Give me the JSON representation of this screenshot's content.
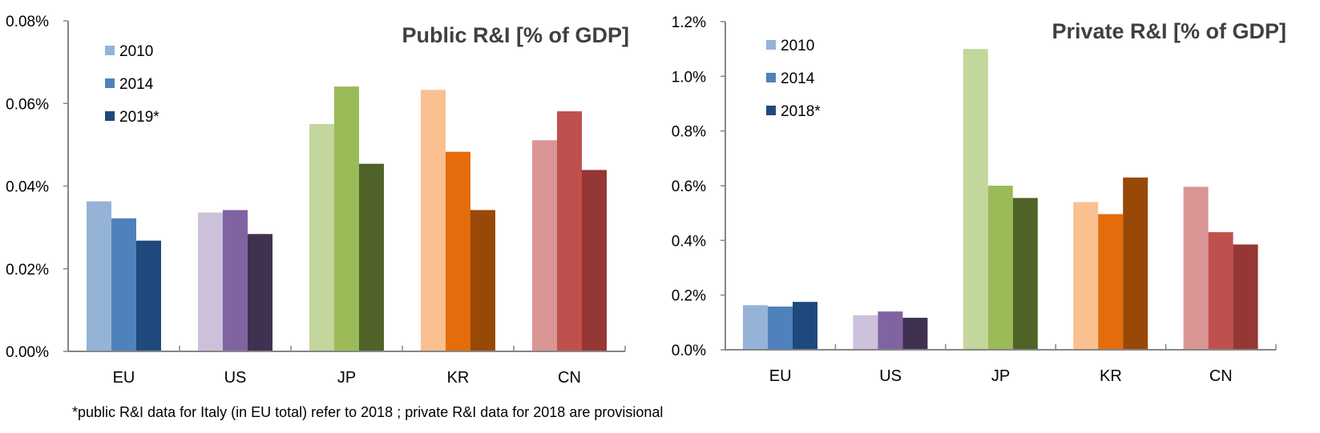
{
  "chart_data": [
    {
      "type": "bar",
      "title": "Public R&I [% of GDP]",
      "xlabel": "",
      "ylabel": "",
      "categories": [
        "EU",
        "US",
        "JP",
        "KR",
        "CN"
      ],
      "ylim": [
        0,
        0.08
      ],
      "yticks": [
        0.0,
        0.02,
        0.04,
        0.06,
        0.08
      ],
      "ytick_labels": [
        "0.00%",
        "0.02%",
        "0.04%",
        "0.06%",
        "0.08%"
      ],
      "unit": "% of GDP",
      "grid": false,
      "legend_position": "top-left",
      "legend": [
        "2010",
        "2014",
        "2019*"
      ],
      "legend_colors": [
        "#95B3D7",
        "#4F81BD",
        "#1F497D"
      ],
      "series": [
        {
          "name": "2010",
          "values": [
            0.0363,
            0.0336,
            0.055,
            0.0633,
            0.0511
          ]
        },
        {
          "name": "2014",
          "values": [
            0.0322,
            0.0342,
            0.0641,
            0.0483,
            0.0581
          ]
        },
        {
          "name": "2019*",
          "values": [
            0.0268,
            0.0284,
            0.0454,
            0.0342,
            0.0439
          ]
        }
      ],
      "category_colors": {
        "EU": [
          "#95B3D7",
          "#4F81BD",
          "#1F497D"
        ],
        "US": [
          "#CCC1DA",
          "#8064A2",
          "#403151"
        ],
        "JP": [
          "#C3D69B",
          "#9BBB59",
          "#4F6228"
        ],
        "KR": [
          "#FAC090",
          "#E46C0A",
          "#984807"
        ],
        "CN": [
          "#D99694",
          "#C0504D",
          "#953735"
        ]
      }
    },
    {
      "type": "bar",
      "title": "Private R&I [% of GDP]",
      "xlabel": "",
      "ylabel": "",
      "categories": [
        "EU",
        "US",
        "JP",
        "KR",
        "CN"
      ],
      "ylim": [
        0,
        1.2
      ],
      "yticks": [
        0.0,
        0.2,
        0.4,
        0.6,
        0.8,
        1.0,
        1.2
      ],
      "ytick_labels": [
        "0.0%",
        "0.2%",
        "0.4%",
        "0.6%",
        "0.8%",
        "1.0%",
        "1.2%"
      ],
      "unit": "% of GDP",
      "grid": false,
      "legend_position": "top-left",
      "legend": [
        "2010",
        "2014",
        "2018*"
      ],
      "legend_colors": [
        "#95B3D7",
        "#4F81BD",
        "#1F497D"
      ],
      "series": [
        {
          "name": "2010",
          "values": [
            0.163,
            0.126,
            1.1,
            0.54,
            0.596
          ]
        },
        {
          "name": "2014",
          "values": [
            0.158,
            0.14,
            0.6,
            0.496,
            0.43
          ]
        },
        {
          "name": "2018*",
          "values": [
            0.175,
            0.117,
            0.555,
            0.63,
            0.385
          ]
        }
      ],
      "category_colors": {
        "EU": [
          "#95B3D7",
          "#4F81BD",
          "#1F497D"
        ],
        "US": [
          "#CCC1DA",
          "#8064A2",
          "#403151"
        ],
        "JP": [
          "#C3D69B",
          "#9BBB59",
          "#4F6228"
        ],
        "KR": [
          "#FAC090",
          "#E46C0A",
          "#984807"
        ],
        "CN": [
          "#D99694",
          "#C0504D",
          "#953735"
        ]
      }
    }
  ],
  "footnote": "*public R&I data for Italy (in EU total)  refer to 2018 ; private R&I data for 2018 are provisional"
}
